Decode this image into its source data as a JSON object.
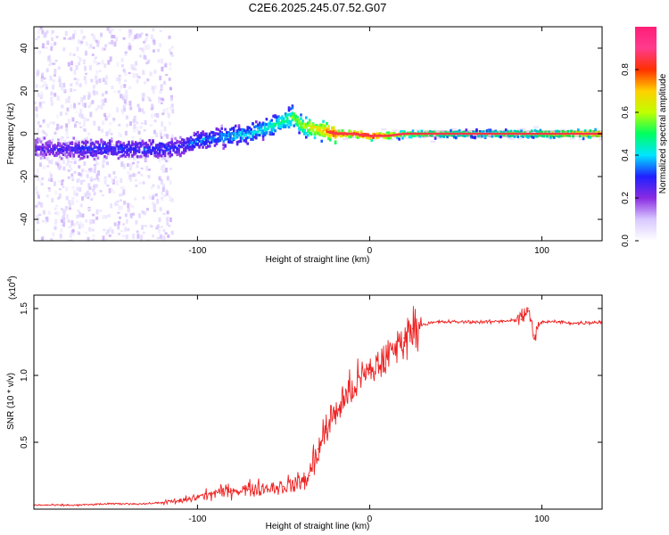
{
  "title": "C2E6.2025.245.07.52.G07",
  "chart_data": [
    {
      "type": "heatmap",
      "title": "",
      "xlabel": "Height of straight line (km)",
      "ylabel": "Frequency (Hz)",
      "xlim": [
        -195,
        135
      ],
      "ylim": [
        -50,
        50
      ],
      "xticks": [
        -100,
        0,
        100
      ],
      "yticks": [
        -40,
        -20,
        0,
        20,
        40
      ],
      "ridge": {
        "x": [
          -195,
          -180,
          -160,
          -140,
          -120,
          -110,
          -100,
          -90,
          -80,
          -70,
          -60,
          -50,
          -45,
          -40,
          -30,
          -20,
          -10,
          0,
          10,
          20,
          40,
          60,
          80,
          100,
          135
        ],
        "y": [
          -7,
          -7,
          -7,
          -7,
          -7,
          -6,
          -3,
          -2,
          -1,
          0,
          3,
          6,
          8,
          4,
          2,
          0,
          0,
          -1,
          -1,
          0,
          0,
          0,
          0,
          0,
          0
        ],
        "amplitude": [
          0.25,
          0.25,
          0.3,
          0.3,
          0.3,
          0.3,
          0.35,
          0.35,
          0.4,
          0.4,
          0.45,
          0.5,
          0.55,
          0.6,
          0.7,
          0.85,
          0.8,
          0.9,
          0.75,
          0.6,
          0.55,
          0.5,
          0.55,
          0.6,
          0.75
        ]
      },
      "colorbar": {
        "label": "Normalized spectral amplitude",
        "range": [
          0,
          1
        ],
        "ticks": [
          "0.0",
          "0.2",
          "0.4",
          "0.6",
          "0.8"
        ],
        "tick_values": [
          0.0,
          0.2,
          0.4,
          0.6,
          0.8
        ],
        "colors": [
          "#ffffff",
          "#d8c8ff",
          "#8a2be2",
          "#2020ff",
          "#00e5ff",
          "#00ff60",
          "#c0ff00",
          "#ffd000",
          "#ff3000",
          "#ff3b8d",
          "#ff1e78"
        ]
      }
    },
    {
      "type": "line",
      "title": "",
      "xlabel": "Height of straight line (km)",
      "ylabel": "SNR (10 * v/v)",
      "scale_label": "(x10",
      "scale_exp": "4",
      "scale_close": ")",
      "xlim": [
        -195,
        135
      ],
      "ylim": [
        0,
        1.6
      ],
      "xticks": [
        -100,
        0,
        100
      ],
      "yticks": [
        "0.5",
        "1.0",
        "1.5"
      ],
      "ytick_values": [
        0.5,
        1.0,
        1.5
      ],
      "series": [
        {
          "name": "SNR",
          "color": "#ee2222",
          "x": [
            -195,
            -170,
            -150,
            -130,
            -120,
            -110,
            -100,
            -90,
            -80,
            -70,
            -60,
            -50,
            -40,
            -35,
            -30,
            -25,
            -20,
            -15,
            -10,
            -5,
            0,
            5,
            10,
            15,
            20,
            25,
            30,
            40,
            50,
            60,
            70,
            80,
            88,
            92,
            95,
            100,
            110,
            120,
            135
          ],
          "y": [
            0.03,
            0.03,
            0.04,
            0.04,
            0.05,
            0.06,
            0.09,
            0.12,
            0.14,
            0.15,
            0.16,
            0.17,
            0.2,
            0.25,
            0.45,
            0.6,
            0.72,
            0.82,
            0.9,
            0.98,
            1.02,
            1.08,
            1.14,
            1.2,
            1.28,
            1.35,
            1.38,
            1.4,
            1.4,
            1.4,
            1.4,
            1.41,
            1.42,
            1.5,
            1.3,
            1.4,
            1.4,
            1.39,
            1.4
          ]
        }
      ]
    }
  ]
}
